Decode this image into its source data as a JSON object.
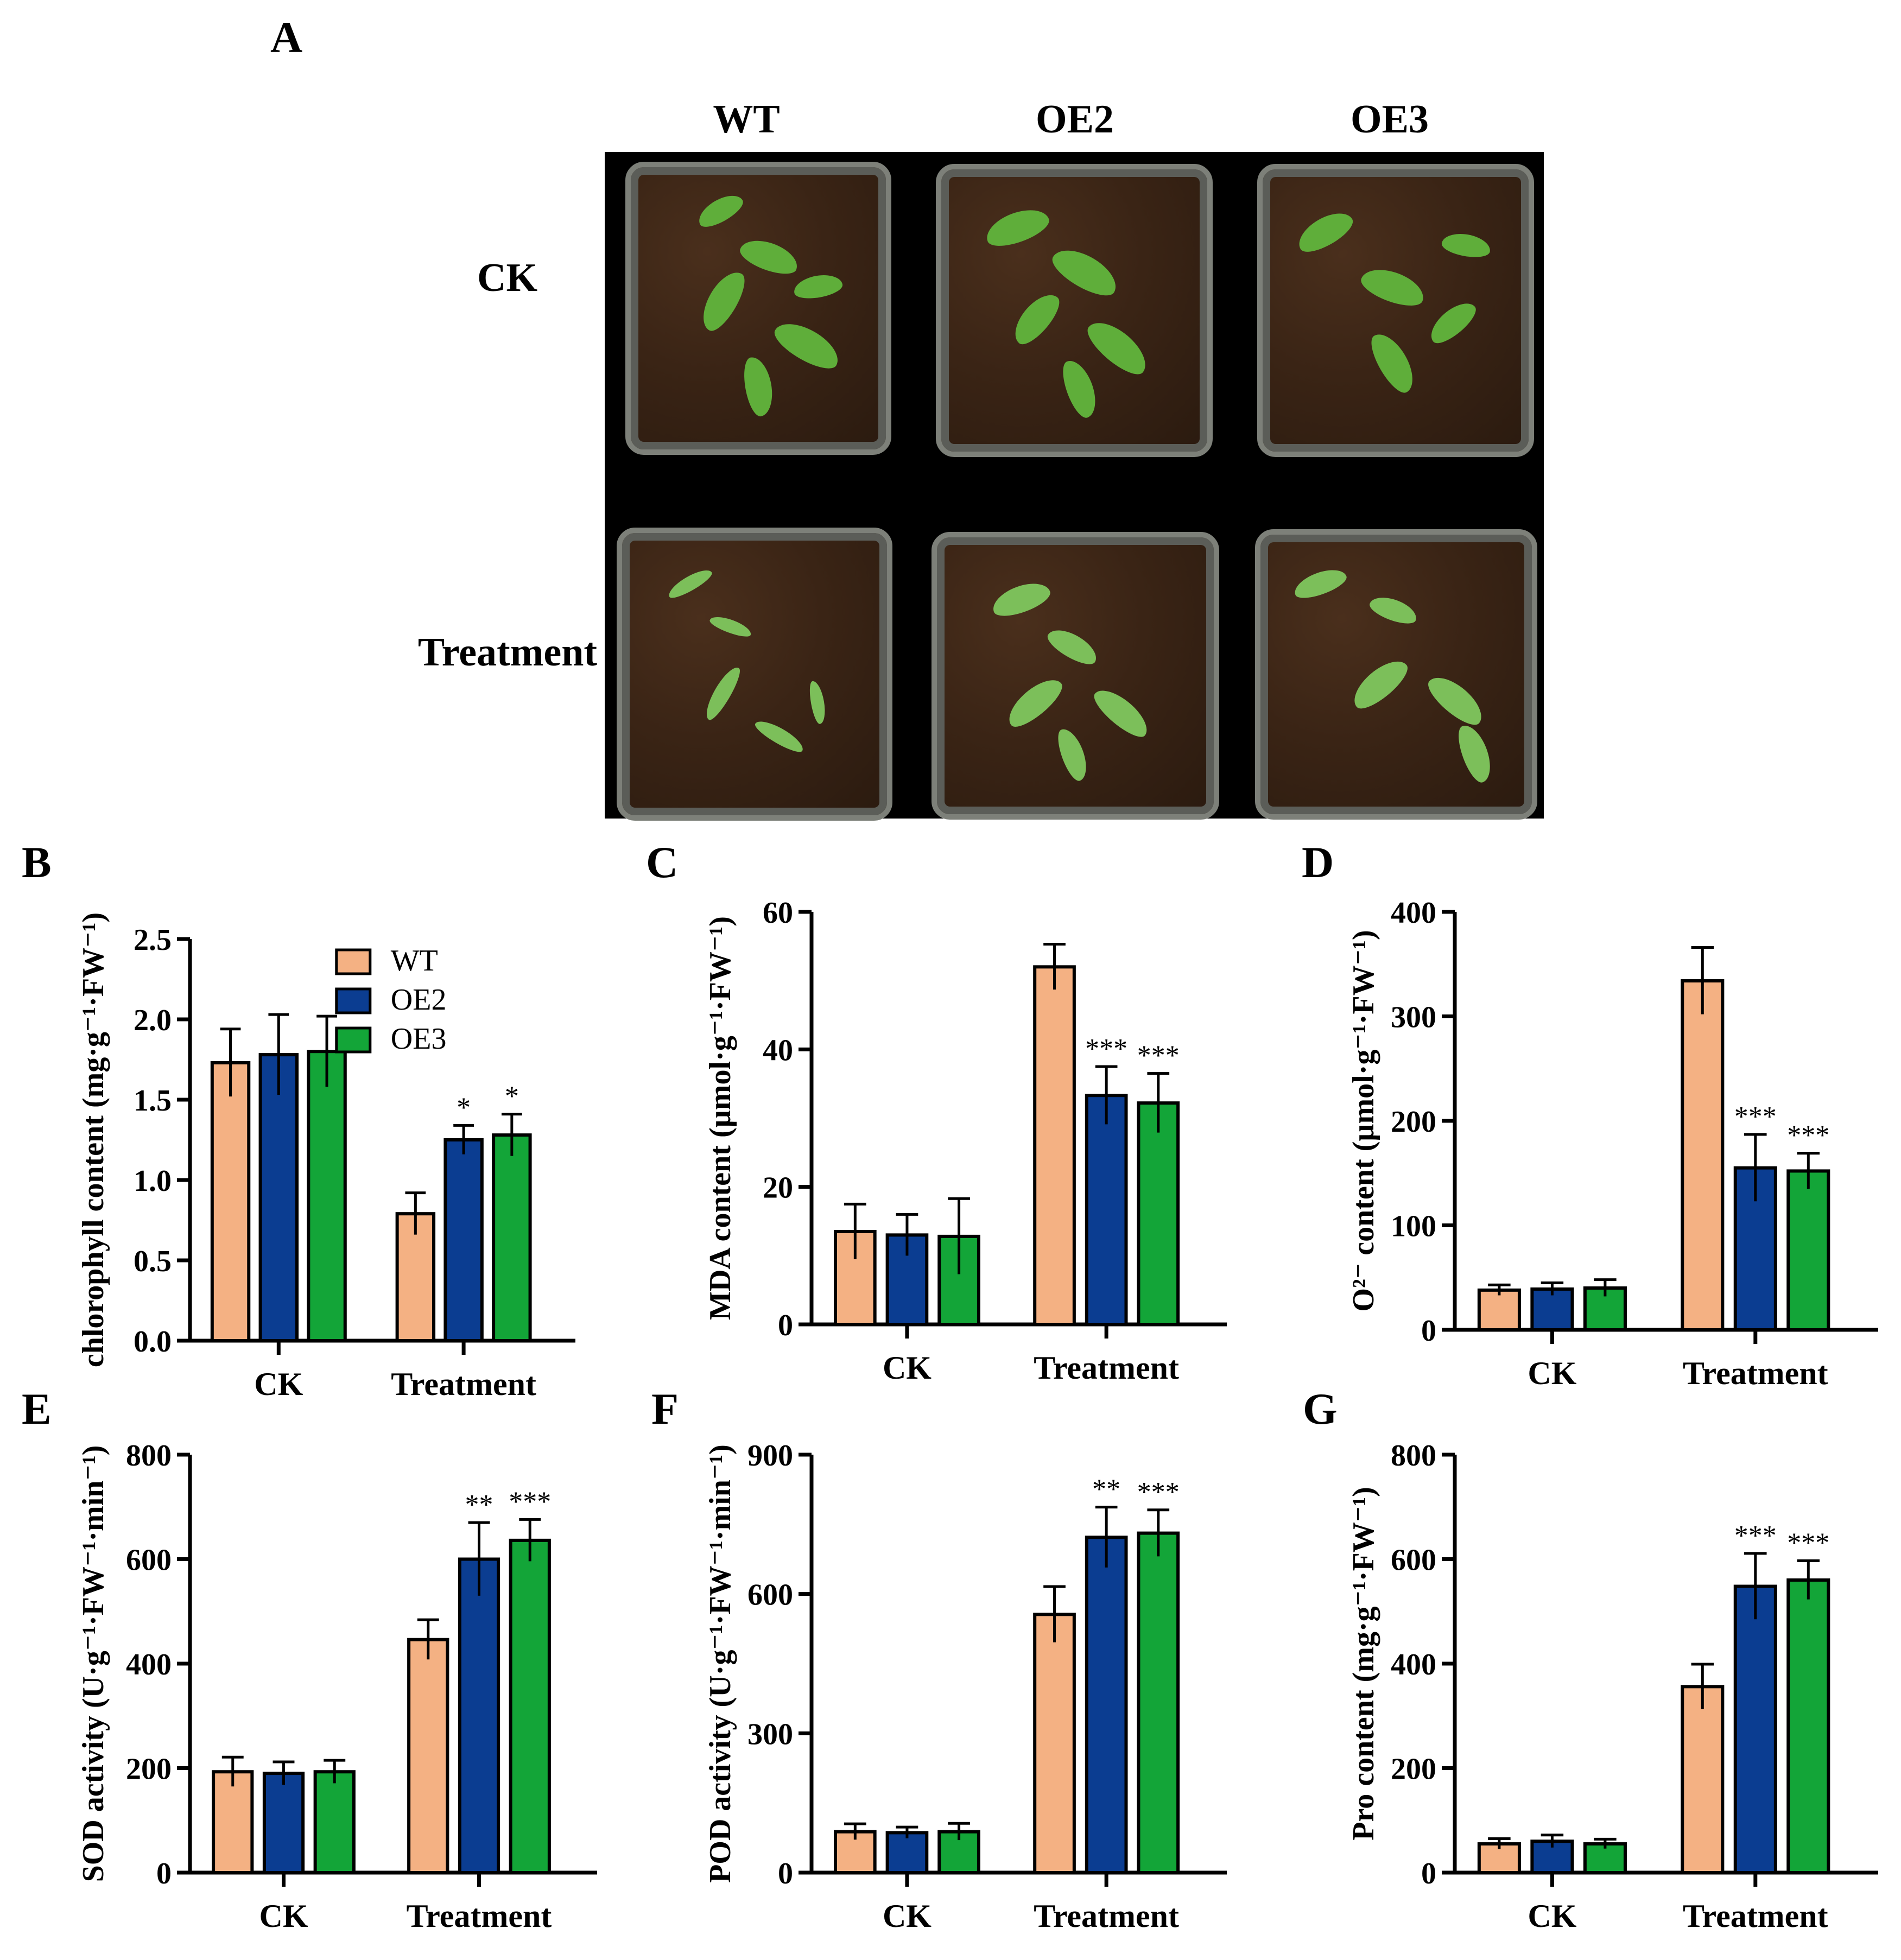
{
  "panel_labels": [
    "A",
    "B",
    "C",
    "D",
    "E",
    "F",
    "G"
  ],
  "photo": {
    "columns": [
      "WT",
      "OE2",
      "OE3"
    ],
    "rows": [
      "CK",
      "Treatment"
    ]
  },
  "colors": {
    "WT": "#f4b183",
    "OE2": "#0b3d91",
    "OE3": "#13a538"
  },
  "chart_data": [
    {
      "panel": "B",
      "type": "bar",
      "categories": [
        "CK",
        "Treatment"
      ],
      "ylabel": "chlorophyll content (mg·g⁻¹·FW⁻¹)",
      "ylim": [
        0,
        2.5
      ],
      "yticks": [
        "0.0",
        "0.5",
        "1.0",
        "1.5",
        "2.0",
        "2.5"
      ],
      "legend": "top-right",
      "series": [
        {
          "name": "WT",
          "values": [
            1.73,
            0.79
          ],
          "errors": [
            0.21,
            0.13
          ],
          "sig": [
            "",
            ""
          ]
        },
        {
          "name": "OE2",
          "values": [
            1.78,
            1.25
          ],
          "errors": [
            0.25,
            0.09
          ],
          "sig": [
            "",
            "*"
          ]
        },
        {
          "name": "OE3",
          "values": [
            1.8,
            1.28
          ],
          "errors": [
            0.22,
            0.13
          ],
          "sig": [
            "",
            "*"
          ]
        }
      ]
    },
    {
      "panel": "C",
      "type": "bar",
      "categories": [
        "CK",
        "Treatment"
      ],
      "ylabel": "MDA content (µmol·g⁻¹·FW⁻¹)",
      "ylim": [
        0,
        60
      ],
      "yticks": [
        "0",
        "20",
        "40",
        "60"
      ],
      "series": [
        {
          "name": "WT",
          "values": [
            13.5,
            52
          ],
          "errors": [
            4.0,
            3.3
          ],
          "sig": [
            "",
            ""
          ]
        },
        {
          "name": "OE2",
          "values": [
            13.0,
            33.3
          ],
          "errors": [
            3.0,
            4.2
          ],
          "sig": [
            "",
            "***"
          ]
        },
        {
          "name": "OE3",
          "values": [
            12.8,
            32.2
          ],
          "errors": [
            5.5,
            4.3
          ],
          "sig": [
            "",
            "***"
          ]
        }
      ]
    },
    {
      "panel": "D",
      "type": "bar",
      "categories": [
        "CK",
        "Treatment"
      ],
      "ylabel": "O²⁻ content (µmol·g⁻¹·FW⁻¹)",
      "ylim": [
        0,
        400
      ],
      "yticks": [
        "0",
        "100",
        "200",
        "300",
        "400"
      ],
      "series": [
        {
          "name": "WT",
          "values": [
            38,
            334
          ],
          "errors": [
            5,
            32
          ],
          "sig": [
            "",
            ""
          ]
        },
        {
          "name": "OE2",
          "values": [
            39,
            155
          ],
          "errors": [
            6,
            32
          ],
          "sig": [
            "",
            "***"
          ]
        },
        {
          "name": "OE3",
          "values": [
            40,
            152
          ],
          "errors": [
            8,
            17
          ],
          "sig": [
            "",
            "***"
          ]
        }
      ]
    },
    {
      "panel": "E",
      "type": "bar",
      "categories": [
        "CK",
        "Treatment"
      ],
      "ylabel": "SOD activity (U·g⁻¹·FW⁻¹·min⁻¹)",
      "ylim": [
        0,
        800
      ],
      "yticks": [
        "0",
        "200",
        "400",
        "600",
        "800"
      ],
      "series": [
        {
          "name": "WT",
          "values": [
            193,
            446
          ],
          "errors": [
            28,
            38
          ],
          "sig": [
            "",
            ""
          ]
        },
        {
          "name": "OE2",
          "values": [
            190,
            600
          ],
          "errors": [
            22,
            70
          ],
          "sig": [
            "",
            "**"
          ]
        },
        {
          "name": "OE3",
          "values": [
            193,
            636
          ],
          "errors": [
            22,
            40
          ],
          "sig": [
            "",
            "***"
          ]
        }
      ]
    },
    {
      "panel": "F",
      "type": "bar",
      "categories": [
        "CK",
        "Treatment"
      ],
      "ylabel": "POD activity (U·g⁻¹·FW⁻¹·min⁻¹)",
      "ylim": [
        0,
        900
      ],
      "yticks": [
        "0",
        "300",
        "600",
        "900"
      ],
      "series": [
        {
          "name": "WT",
          "values": [
            88,
            556
          ],
          "errors": [
            17,
            60
          ],
          "sig": [
            "",
            ""
          ]
        },
        {
          "name": "OE2",
          "values": [
            86,
            722
          ],
          "errors": [
            12,
            65
          ],
          "sig": [
            "",
            "**"
          ]
        },
        {
          "name": "OE3",
          "values": [
            88,
            731
          ],
          "errors": [
            18,
            50
          ],
          "sig": [
            "",
            "***"
          ]
        }
      ]
    },
    {
      "panel": "G",
      "type": "bar",
      "categories": [
        "CK",
        "Treatment"
      ],
      "ylabel": "Pro content (mg·g⁻¹·FW⁻¹)",
      "ylim": [
        0,
        800
      ],
      "yticks": [
        "0",
        "200",
        "400",
        "600",
        "800"
      ],
      "series": [
        {
          "name": "WT",
          "values": [
            55,
            356
          ],
          "errors": [
            10,
            43
          ],
          "sig": [
            "",
            ""
          ]
        },
        {
          "name": "OE2",
          "values": [
            60,
            548
          ],
          "errors": [
            12,
            63
          ],
          "sig": [
            "",
            "***"
          ]
        },
        {
          "name": "OE3",
          "values": [
            55,
            560
          ],
          "errors": [
            9,
            37
          ],
          "sig": [
            "",
            "***"
          ]
        }
      ]
    }
  ]
}
